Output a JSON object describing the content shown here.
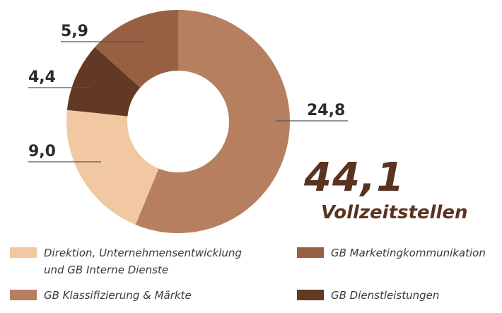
{
  "chart_data": {
    "type": "donut",
    "center_total": {
      "value": "44,1",
      "label": "Vollzeitstellen"
    },
    "series": [
      {
        "name": "GB Klassifizierung & Märkte",
        "value": 24.8,
        "label": "24,8",
        "color": "#b57f60"
      },
      {
        "name": "Direktion, Unternehmensentwicklung\nund GB Interne Dienste",
        "value": 9.0,
        "label": "9,0",
        "color": "#f1c8a1"
      },
      {
        "name": "GB Dienstleistungen",
        "value": 4.4,
        "label": "4,4",
        "color": "#623a23"
      },
      {
        "name": "GB Marketingkommunikation",
        "value": 5.9,
        "label": "5,9",
        "color": "#976043"
      }
    ]
  },
  "colors": {
    "total_text": "#5a3420",
    "leader_line": "#555555"
  }
}
